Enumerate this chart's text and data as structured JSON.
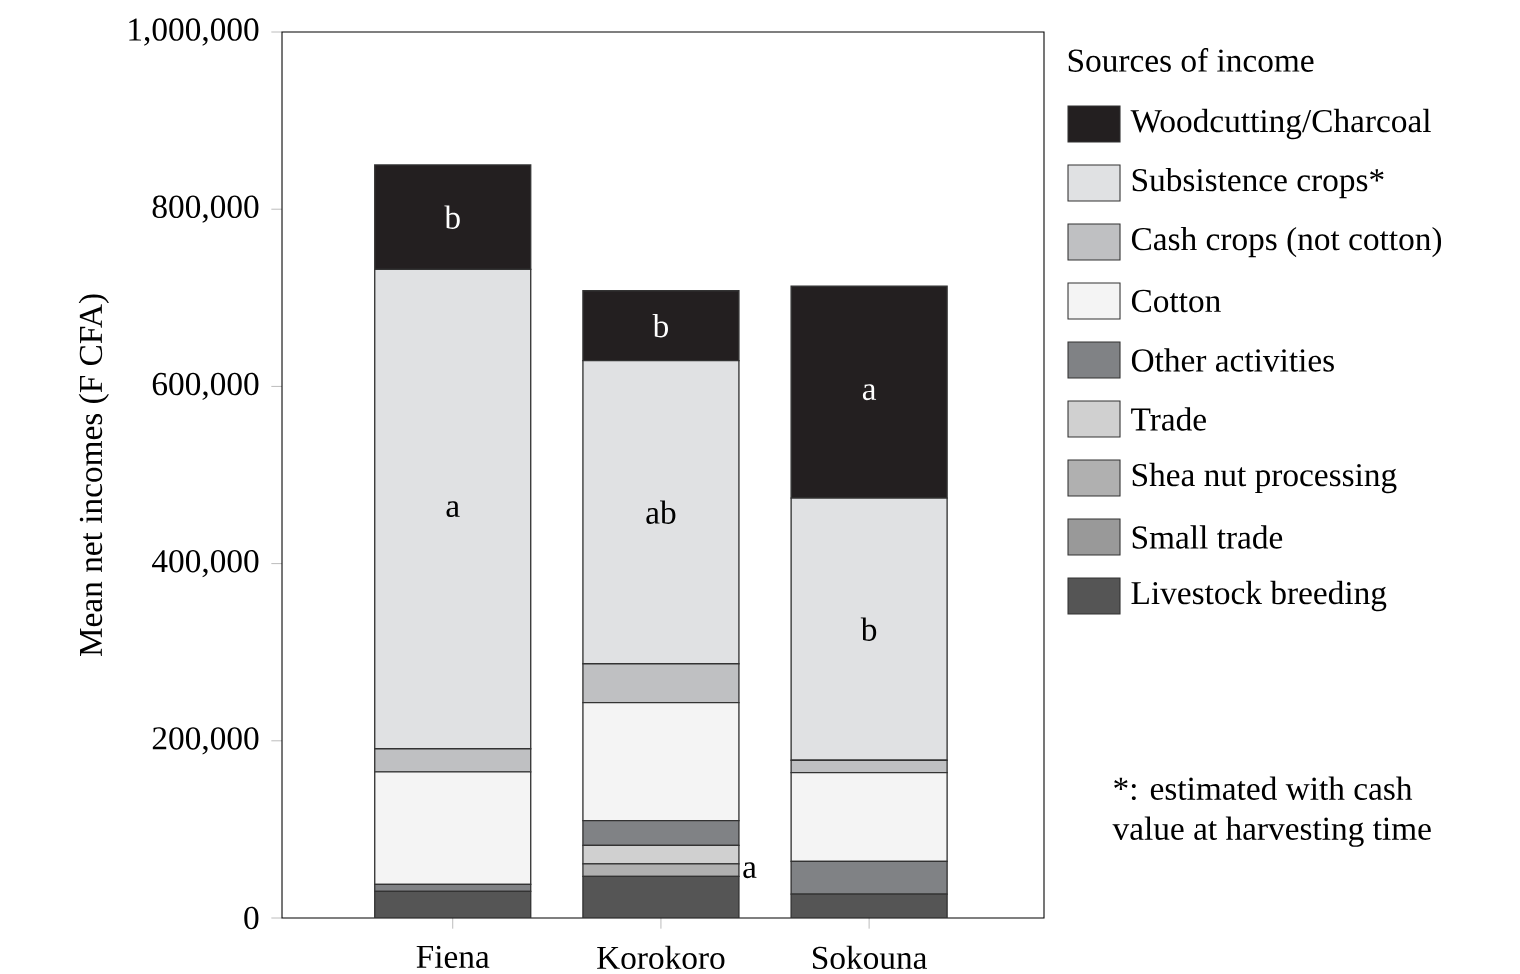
{
  "chart_data": {
    "type": "bar",
    "stacked": true,
    "ylabel": "Mean net incomes (F CFA)",
    "legend_title": "Sources of income",
    "legend": "right",
    "categories": [
      "Fiena",
      "Korokoro",
      "Sokouna"
    ],
    "series": [
      {
        "name": "Livestock breeding",
        "color": "#555555",
        "values": [
          30000,
          47000,
          27000
        ]
      },
      {
        "name": "Small trade",
        "color": "#999999",
        "values": [
          null,
          null,
          null
        ]
      },
      {
        "name": "Shea nut processing",
        "color": "#b0b0b0",
        "values": [
          0,
          14000,
          0
        ]
      },
      {
        "name": "Trade",
        "color": "#d0d0d0",
        "values": [
          0,
          21000,
          0
        ]
      },
      {
        "name": "Other activities",
        "color": "#808285",
        "values": [
          8000,
          28000,
          37000
        ]
      },
      {
        "name": "Cotton",
        "color": "#f4f4f4",
        "values": [
          127000,
          133000,
          100000
        ]
      },
      {
        "name": "Cash crops (not cotton)",
        "color": "#bfc0c2",
        "values": [
          26000,
          44000,
          14000
        ]
      },
      {
        "name": "Subsistence crops*",
        "color": "#e0e1e3",
        "values": [
          541000,
          342000,
          296000
        ]
      },
      {
        "name": "Woodcutting/Charcoal",
        "color": "#231f20",
        "values": [
          118000,
          79000,
          239000
        ]
      }
    ],
    "ylim": [
      0,
      1000000
    ],
    "yticks": [
      {
        "value": 0,
        "label": "0"
      },
      {
        "value": 200000,
        "label": "200,000"
      },
      {
        "value": 400000,
        "label": "400,000"
      },
      {
        "value": 600000,
        "label": "600,000"
      },
      {
        "value": 800000,
        "label": "800,000"
      },
      {
        "value": 1000000,
        "label": "1,000,000"
      }
    ],
    "annotations": [
      "b",
      "a",
      "b",
      "ab",
      "a",
      "a",
      "b",
      "*: estimated with cash value at harvesting time"
    ]
  }
}
